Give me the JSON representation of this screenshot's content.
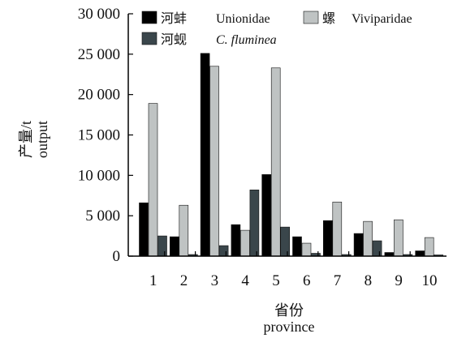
{
  "chart_data": {
    "type": "bar",
    "title": "",
    "xlabel": [
      "省份",
      "province"
    ],
    "ylabel": [
      "产量/t",
      "output"
    ],
    "ylim": [
      0,
      30000
    ],
    "yticks": [
      0,
      5000,
      10000,
      15000,
      20000,
      25000,
      30000
    ],
    "ytick_labels": [
      "0",
      "5 000",
      "10 000",
      "15 000",
      "20 000",
      "25 000",
      "30 000"
    ],
    "categories": [
      "1",
      "2",
      "3",
      "4",
      "5",
      "6",
      "7",
      "8",
      "9",
      "10"
    ],
    "series": [
      {
        "name_cn": "河蚌",
        "name": "Unionidae",
        "color": "#000000",
        "values": [
          6600,
          2400,
          25100,
          3900,
          10100,
          2400,
          4400,
          2800,
          450,
          650
        ]
      },
      {
        "name_cn": "螺",
        "name": "Viviparidae",
        "color": "#bfc3c3",
        "values": [
          18900,
          6300,
          23500,
          3200,
          23300,
          1600,
          6700,
          4300,
          4500,
          2300
        ]
      },
      {
        "name_cn": "河蚬",
        "name": "C. fluminea",
        "color": "#3a464b",
        "values": [
          2500,
          200,
          1300,
          8200,
          3600,
          350,
          200,
          1900,
          200,
          150
        ]
      }
    ],
    "legend_position": "top",
    "grid": false
  }
}
